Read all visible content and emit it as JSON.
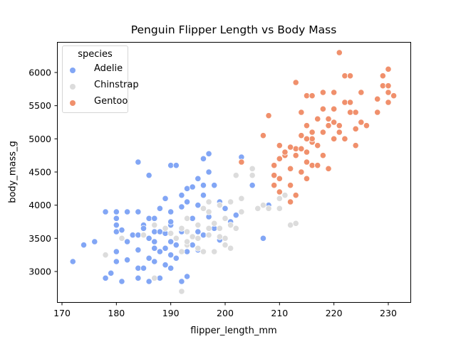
{
  "chart_data": {
    "type": "scatter",
    "title": "Penguin Flipper Length vs Body Mass",
    "xlabel": "flipper_length_mm",
    "ylabel": "body_mass_g",
    "xlim": [
      169,
      234
    ],
    "ylim": [
      2500,
      6450
    ],
    "xticks": [
      170,
      180,
      190,
      200,
      210,
      220,
      230
    ],
    "yticks": [
      3000,
      3500,
      4000,
      4500,
      5000,
      5500,
      6000
    ],
    "grid": false,
    "legend": {
      "title": "species",
      "position": "upper left",
      "entries": [
        "Adelie",
        "Chinstrap",
        "Gentoo"
      ]
    },
    "series": [
      {
        "name": "Adelie",
        "color": "#82a6f5",
        "points": [
          [
            172,
            3150
          ],
          [
            174,
            3400
          ],
          [
            176,
            3450
          ],
          [
            178,
            2900
          ],
          [
            178,
            3900
          ],
          [
            179,
            2975
          ],
          [
            180,
            3150
          ],
          [
            180,
            3300
          ],
          [
            180,
            3700
          ],
          [
            180,
            3600
          ],
          [
            180,
            3800
          ],
          [
            180,
            3900
          ],
          [
            181,
            2850
          ],
          [
            181,
            3625
          ],
          [
            181,
            3500
          ],
          [
            182,
            3175
          ],
          [
            182,
            3450
          ],
          [
            183,
            3550
          ],
          [
            184,
            2900
          ],
          [
            184,
            3050
          ],
          [
            184,
            3325
          ],
          [
            184,
            3550
          ],
          [
            184,
            3900
          ],
          [
            185,
            3050
          ],
          [
            185,
            3700
          ],
          [
            185,
            3650
          ],
          [
            186,
            2850
          ],
          [
            186,
            3500
          ],
          [
            186,
            3800
          ],
          [
            186,
            4450
          ],
          [
            187,
            3150
          ],
          [
            187,
            3450
          ],
          [
            187,
            3350
          ],
          [
            187,
            3800
          ],
          [
            187,
            3600
          ],
          [
            188,
            2900
          ],
          [
            188,
            3300
          ],
          [
            188,
            3600
          ],
          [
            188,
            3950
          ],
          [
            189,
            3100
          ],
          [
            189,
            3350
          ],
          [
            189,
            3575
          ],
          [
            189,
            4100
          ],
          [
            190,
            3050
          ],
          [
            190,
            3250
          ],
          [
            190,
            3450
          ],
          [
            190,
            3700
          ],
          [
            190,
            3900
          ],
          [
            190,
            4600
          ],
          [
            191,
            3200
          ],
          [
            191,
            4600
          ],
          [
            191,
            3400
          ],
          [
            192,
            2850
          ],
          [
            192,
            3600
          ],
          [
            192,
            4150
          ],
          [
            192,
            3975
          ],
          [
            193,
            2925
          ],
          [
            193,
            3300
          ],
          [
            193,
            4050
          ],
          [
            193,
            4250
          ],
          [
            194,
            3400
          ],
          [
            194,
            3800
          ],
          [
            194,
            4275
          ],
          [
            195,
            3325
          ],
          [
            195,
            3600
          ],
          [
            195,
            4400
          ],
          [
            195,
            4000
          ],
          [
            196,
            3550
          ],
          [
            196,
            4150
          ],
          [
            196,
            4300
          ],
          [
            196,
            4700
          ],
          [
            197,
            3825
          ],
          [
            197,
            4500
          ],
          [
            197,
            4775
          ],
          [
            198,
            3650
          ],
          [
            198,
            4300
          ],
          [
            199,
            3475
          ],
          [
            199,
            4050
          ],
          [
            200,
            3950
          ],
          [
            201,
            3750
          ],
          [
            202,
            3850
          ],
          [
            203,
            4725
          ],
          [
            205,
            4300
          ],
          [
            207,
            3500
          ],
          [
            208,
            4000
          ],
          [
            184,
            4650
          ],
          [
            182,
            3900
          ],
          [
            186,
            3200
          ],
          [
            188,
            3950
          ],
          [
            190,
            3750
          ]
        ]
      },
      {
        "name": "Chinstrap",
        "color": "#dcdcdc",
        "points": [
          [
            178,
            3250
          ],
          [
            181,
            3500
          ],
          [
            185,
            3550
          ],
          [
            187,
            2900
          ],
          [
            187,
            3700
          ],
          [
            189,
            3650
          ],
          [
            190,
            3575
          ],
          [
            191,
            3500
          ],
          [
            192,
            2700
          ],
          [
            192,
            3650
          ],
          [
            193,
            3400
          ],
          [
            193,
            3800
          ],
          [
            194,
            3525
          ],
          [
            195,
            3350
          ],
          [
            195,
            3500
          ],
          [
            196,
            3300
          ],
          [
            196,
            3950
          ],
          [
            197,
            3550
          ],
          [
            197,
            3900
          ],
          [
            198,
            3300
          ],
          [
            198,
            3725
          ],
          [
            199,
            3650
          ],
          [
            200,
            3400
          ],
          [
            200,
            3800
          ],
          [
            201,
            4050
          ],
          [
            201,
            3700
          ],
          [
            202,
            3650
          ],
          [
            203,
            4100
          ],
          [
            203,
            3900
          ],
          [
            205,
            4550
          ],
          [
            205,
            4450
          ],
          [
            206,
            3950
          ],
          [
            207,
            4000
          ],
          [
            208,
            3950
          ],
          [
            210,
            3950
          ],
          [
            210,
            4100
          ],
          [
            211,
            4150
          ],
          [
            212,
            3700
          ],
          [
            213,
            3725
          ],
          [
            193,
            3600
          ],
          [
            195,
            3700
          ],
          [
            197,
            4050
          ],
          [
            199,
            4000
          ],
          [
            200,
            3500
          ],
          [
            201,
            3350
          ],
          [
            202,
            4450
          ],
          [
            193,
            3450
          ],
          [
            197,
            3650
          ],
          [
            199,
            3525
          ],
          [
            192,
            3300
          ]
        ]
      },
      {
        "name": "Gentoo",
        "color": "#f0906c",
        "points": [
          [
            203,
            4650
          ],
          [
            207,
            5050
          ],
          [
            208,
            5350
          ],
          [
            209,
            4600
          ],
          [
            209,
            4450
          ],
          [
            209,
            4300
          ],
          [
            210,
            4200
          ],
          [
            210,
            4400
          ],
          [
            210,
            4700
          ],
          [
            210,
            4900
          ],
          [
            211,
            4750
          ],
          [
            211,
            4800
          ],
          [
            212,
            4050
          ],
          [
            212,
            4300
          ],
          [
            212,
            4550
          ],
          [
            213,
            4150
          ],
          [
            213,
            4750
          ],
          [
            213,
            4850
          ],
          [
            214,
            4500
          ],
          [
            214,
            4850
          ],
          [
            214,
            5050
          ],
          [
            215,
            4400
          ],
          [
            215,
            4650
          ],
          [
            215,
            4800
          ],
          [
            215,
            5200
          ],
          [
            215,
            5650
          ],
          [
            216,
            4600
          ],
          [
            216,
            4950
          ],
          [
            216,
            5000
          ],
          [
            216,
            5100
          ],
          [
            217,
            4900
          ],
          [
            217,
            5300
          ],
          [
            218,
            4750
          ],
          [
            218,
            5100
          ],
          [
            218,
            5700
          ],
          [
            219,
            4550
          ],
          [
            219,
            5200
          ],
          [
            219,
            5300
          ],
          [
            220,
            5000
          ],
          [
            220,
            5250
          ],
          [
            220,
            5450
          ],
          [
            220,
            5700
          ],
          [
            221,
            5100
          ],
          [
            221,
            6300
          ],
          [
            221,
            5200
          ],
          [
            222,
            5000
          ],
          [
            222,
            5550
          ],
          [
            222,
            5950
          ],
          [
            223,
            5400
          ],
          [
            223,
            5550
          ],
          [
            223,
            5950
          ],
          [
            224,
            4900
          ],
          [
            224,
            5150
          ],
          [
            224,
            5400
          ],
          [
            225,
            5250
          ],
          [
            225,
            5700
          ],
          [
            226,
            5200
          ],
          [
            228,
            5400
          ],
          [
            228,
            5600
          ],
          [
            229,
            5800
          ],
          [
            229,
            5950
          ],
          [
            230,
            5550
          ],
          [
            230,
            5700
          ],
          [
            230,
            6050
          ],
          [
            230,
            5800
          ],
          [
            231,
            5650
          ],
          [
            212,
            4875
          ],
          [
            213,
            5850
          ],
          [
            216,
            5650
          ],
          [
            214,
            5400
          ],
          [
            217,
            4600
          ],
          [
            215,
            5000
          ],
          [
            218,
            5450
          ]
        ]
      }
    ]
  }
}
